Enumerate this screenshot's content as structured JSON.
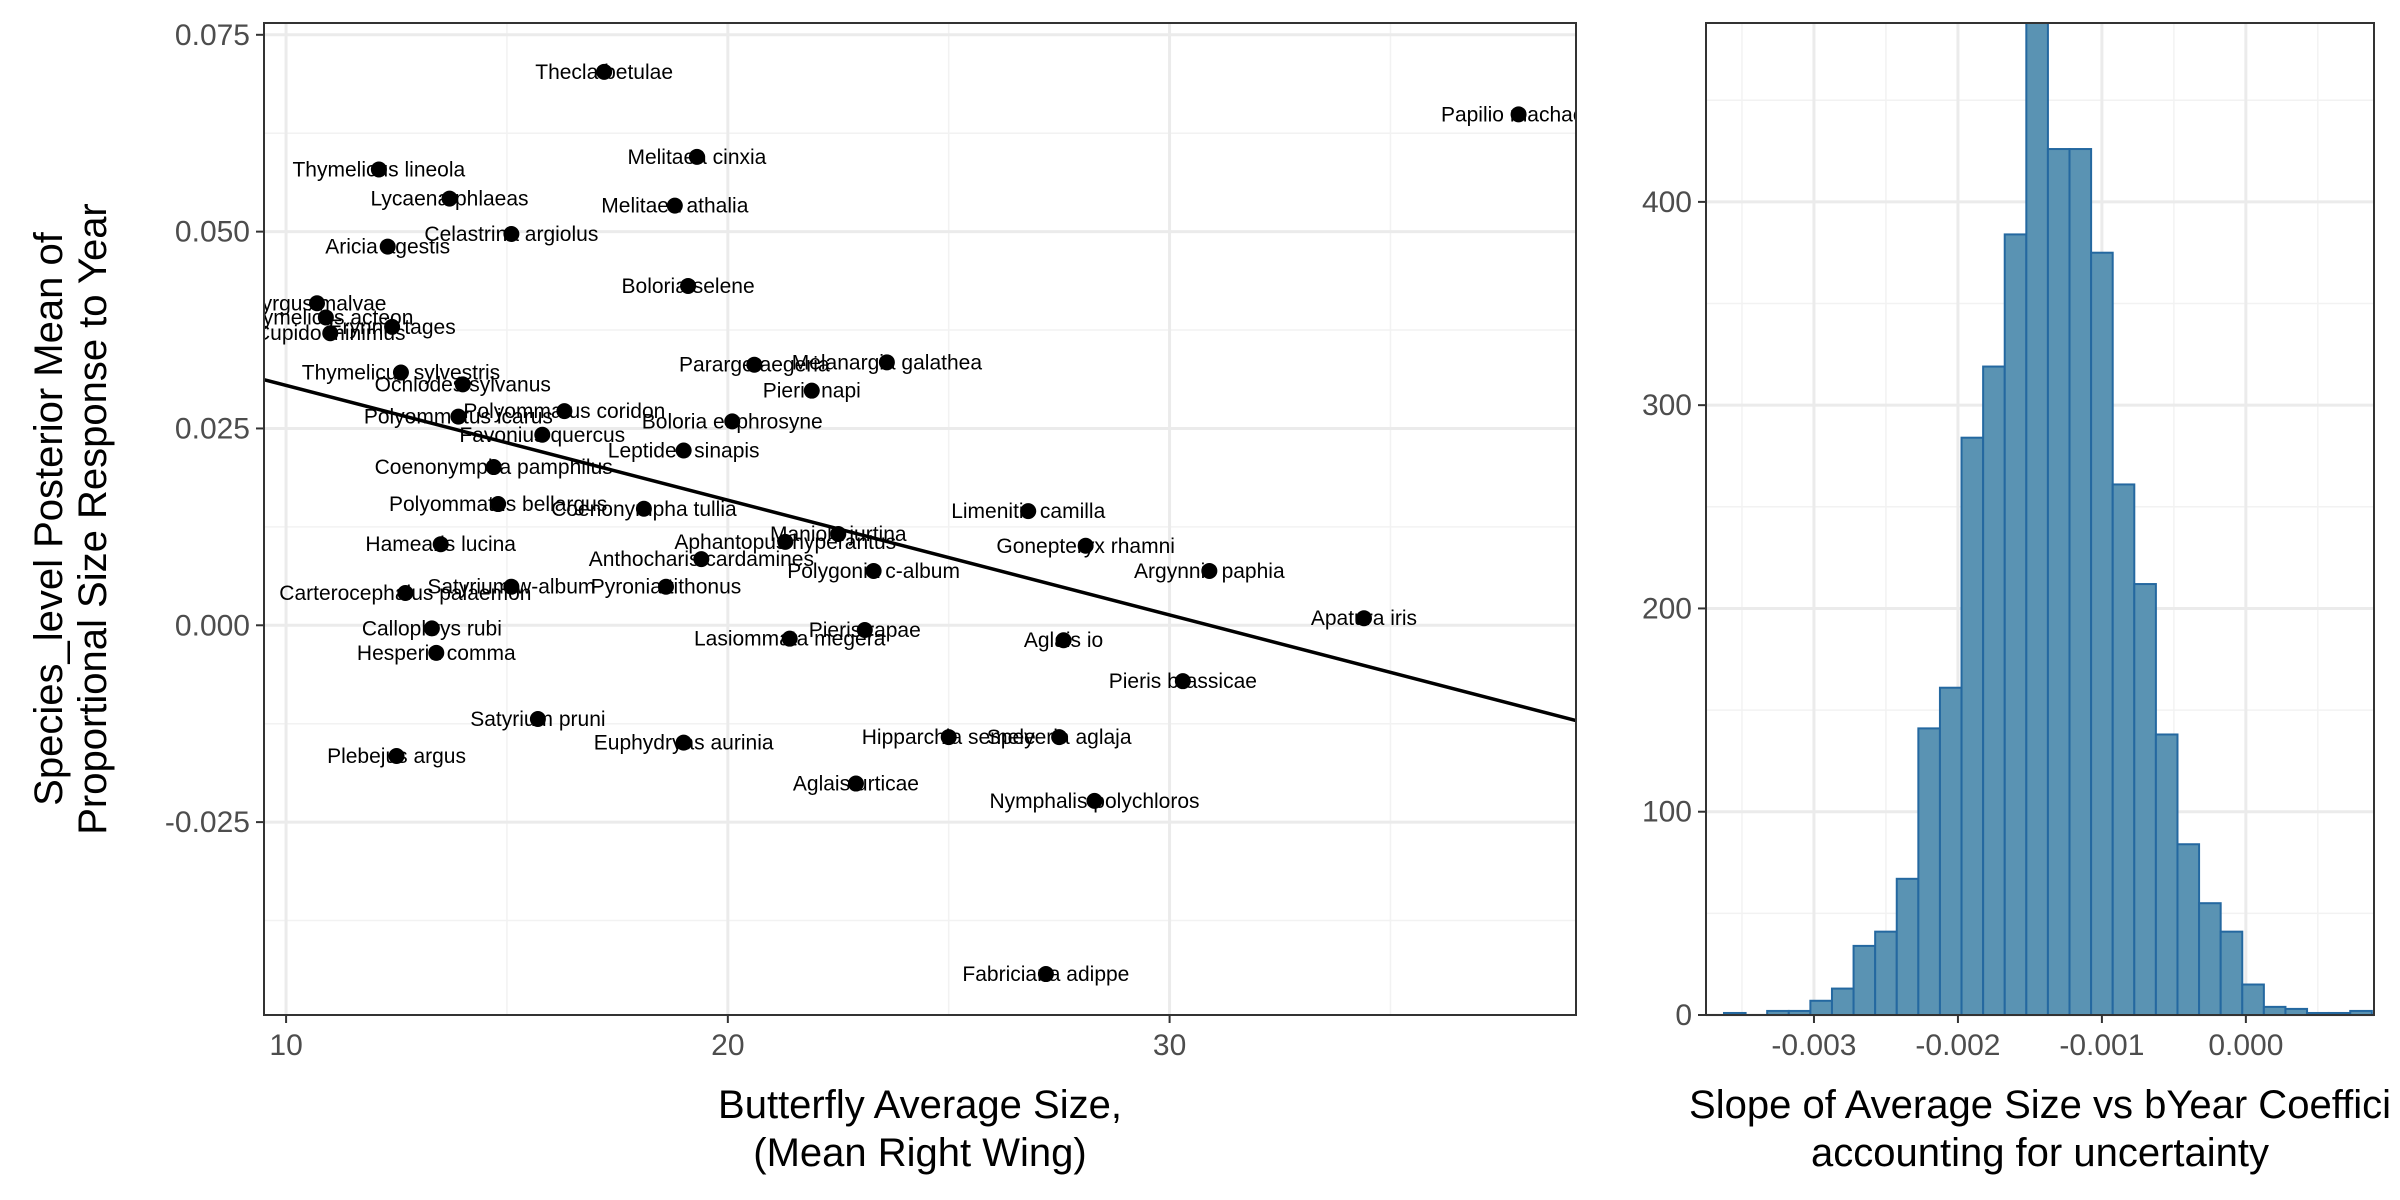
{
  "chart_data": [
    {
      "type": "scatter",
      "title": "",
      "xlabel": [
        "Butterfly Average Size,",
        "(Mean Right Wing)"
      ],
      "ylabel": [
        "Species_level Posterior Mean of",
        "Proportional Size Response to Year"
      ],
      "xlim": [
        9.5,
        39.2
      ],
      "ylim": [
        -0.0495,
        0.0765
      ],
      "xticks": [
        10,
        20,
        30
      ],
      "yticks": [
        -0.025,
        0.0,
        0.025,
        0.05,
        0.075
      ],
      "ytick_labels": [
        "-0.025",
        "0.000",
        "0.025",
        "0.050",
        "0.075"
      ],
      "grid": true,
      "regression_line": {
        "x": [
          9.5,
          39.2
        ],
        "y": [
          0.0312,
          -0.0121
        ]
      },
      "points": [
        {
          "label": "Thecla betulae",
          "x": 17.2,
          "y": 0.0703
        },
        {
          "label": "Papilio machaon",
          "x": 37.9,
          "y": 0.0649
        },
        {
          "label": "Thymelicus lineola",
          "x": 12.1,
          "y": 0.0579
        },
        {
          "label": "Melitaea cinxia",
          "x": 19.3,
          "y": 0.0595
        },
        {
          "label": "Lycaena phlaeas",
          "x": 13.7,
          "y": 0.0542
        },
        {
          "label": "Melitaea athalia",
          "x": 18.8,
          "y": 0.0533
        },
        {
          "label": "Celastrina argiolus",
          "x": 15.1,
          "y": 0.0497
        },
        {
          "label": "Aricia agestis",
          "x": 12.3,
          "y": 0.0481
        },
        {
          "label": "Boloria selene",
          "x": 19.1,
          "y": 0.0431
        },
        {
          "label": "Pyrgus malvae",
          "x": 10.7,
          "y": 0.0409
        },
        {
          "label": "Thymelicus acteon",
          "x": 10.9,
          "y": 0.0391
        },
        {
          "label": "Erynnis tages",
          "x": 12.4,
          "y": 0.0379
        },
        {
          "label": "Cupido minimus",
          "x": 11.0,
          "y": 0.0371
        },
        {
          "label": "Thymelicus sylvestris",
          "x": 12.6,
          "y": 0.0321
        },
        {
          "label": "Ochlodes sylvanus",
          "x": 14.0,
          "y": 0.0306
        },
        {
          "label": "Pararge aegeria",
          "x": 20.6,
          "y": 0.0331
        },
        {
          "label": "Melanargia galathea",
          "x": 23.6,
          "y": 0.0334
        },
        {
          "label": "Pieris napi",
          "x": 21.9,
          "y": 0.0298
        },
        {
          "label": "Polyommatus coridon",
          "x": 16.3,
          "y": 0.0272
        },
        {
          "label": "Polyommatus icarus",
          "x": 13.9,
          "y": 0.0265
        },
        {
          "label": "Boloria euphrosyne",
          "x": 20.1,
          "y": 0.0259
        },
        {
          "label": "Favonius quercus",
          "x": 15.8,
          "y": 0.0242
        },
        {
          "label": "Leptidea sinapis",
          "x": 19.0,
          "y": 0.0222
        },
        {
          "label": "Coenonympha pamphilus",
          "x": 14.7,
          "y": 0.0201
        },
        {
          "label": "Polyommatus bellargus",
          "x": 14.8,
          "y": 0.0154
        },
        {
          "label": "Coenonympha tullia",
          "x": 18.1,
          "y": 0.0148
        },
        {
          "label": "Limenitis camilla",
          "x": 26.8,
          "y": 0.0145
        },
        {
          "label": "Maniola jurtina",
          "x": 22.5,
          "y": 0.0116
        },
        {
          "label": "Aphantopus hyperantus",
          "x": 21.3,
          "y": 0.0106
        },
        {
          "label": "Gonepteryx rhamni",
          "x": 28.1,
          "y": 0.0101
        },
        {
          "label": "Hamearis lucina",
          "x": 13.5,
          "y": 0.0103
        },
        {
          "label": "Anthocharis cardamines",
          "x": 19.4,
          "y": 0.0084
        },
        {
          "label": "Polygonia c-album",
          "x": 23.3,
          "y": 0.0069
        },
        {
          "label": "Argynnis paphia",
          "x": 30.9,
          "y": 0.0069
        },
        {
          "label": "Satyrium w-album",
          "x": 15.1,
          "y": 0.0049
        },
        {
          "label": "Pyronia tithonus",
          "x": 18.6,
          "y": 0.0049
        },
        {
          "label": "Carterocephalus palaemon",
          "x": 12.7,
          "y": 0.0041
        },
        {
          "label": "Apatura iris",
          "x": 34.4,
          "y": 0.0009
        },
        {
          "label": "Callophrys rubi",
          "x": 13.3,
          "y": -0.0004
        },
        {
          "label": "Pieris rapae",
          "x": 23.1,
          "y": -0.0006
        },
        {
          "label": "Lasiommata megera",
          "x": 21.4,
          "y": -0.0017
        },
        {
          "label": "Aglais io",
          "x": 27.6,
          "y": -0.0019
        },
        {
          "label": "Hesperia comma",
          "x": 13.4,
          "y": -0.0035
        },
        {
          "label": "Pieris brassicae",
          "x": 30.3,
          "y": -0.0071
        },
        {
          "label": "Satyrium pruni",
          "x": 15.7,
          "y": -0.0119
        },
        {
          "label": "Hipparchia semele",
          "x": 25.0,
          "y": -0.0142
        },
        {
          "label": "Speyeria aglaja",
          "x": 27.5,
          "y": -0.0142
        },
        {
          "label": "Euphydryas aurinia",
          "x": 19.0,
          "y": -0.0149
        },
        {
          "label": "Plebejus argus",
          "x": 12.5,
          "y": -0.0166
        },
        {
          "label": "Aglais urticae",
          "x": 22.9,
          "y": -0.0201
        },
        {
          "label": "Nymphalis polychloros",
          "x": 28.3,
          "y": -0.0223
        },
        {
          "label": "Fabriciana adippe",
          "x": 27.2,
          "y": -0.0443
        }
      ]
    },
    {
      "type": "bar",
      "subtype": "histogram",
      "title": "",
      "xlabel": [
        "Slope of Average Size vs bYear Coeffici",
        "accounting for uncertainty"
      ],
      "ylabel": "",
      "xlim": [
        -0.00375,
        0.00089
      ],
      "ylim": [
        0,
        488
      ],
      "xticks": [
        -0.003,
        -0.002,
        -0.001,
        0.0
      ],
      "xtick_labels": [
        "-0.003",
        "-0.002",
        "-0.001",
        "0.000"
      ],
      "yticks": [
        0,
        100,
        200,
        300,
        400
      ],
      "grid": true,
      "bin_width": 0.00015,
      "bin_start": -0.003625,
      "values": [
        1,
        0,
        2,
        2,
        7,
        13,
        34,
        41,
        67,
        141,
        161,
        284,
        319,
        384,
        488,
        426,
        426,
        375,
        261,
        212,
        138,
        84,
        55,
        41,
        15,
        4,
        3,
        1,
        1,
        2
      ],
      "bar_fill": "#5a93b3",
      "bar_stroke": "#2468a0"
    }
  ]
}
